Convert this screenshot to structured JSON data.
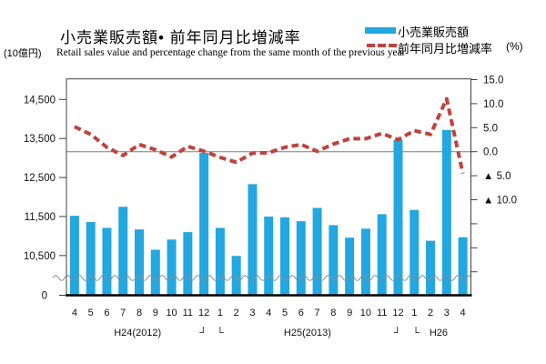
{
  "header": {
    "title": "小売業販売額• 前年同月比増減率",
    "subtitle": "Retail sales value and percentage change from the same month of the previous year",
    "left_unit": "(10億円)",
    "right_unit": "(%)"
  },
  "legend": {
    "bar_label": "小売業販売額",
    "line_label": "前年同月比増減率"
  },
  "colors": {
    "bar": "#22A7E0",
    "line": "#C0423C",
    "zero_line": "#7F7F7F",
    "frame": "#404040",
    "axis": "#000000",
    "wave": "#8C8C8C",
    "text": "#111111"
  },
  "chart_data": {
    "type": "bar+line",
    "title": "小売業販売額• 前年同月比増減率",
    "subtitle": "Retail sales value and percentage change from the same month of the previous year",
    "x_months": [
      "4",
      "5",
      "6",
      "7",
      "8",
      "9",
      "10",
      "11",
      "12",
      "1",
      "2",
      "3",
      "4",
      "5",
      "6",
      "7",
      "8",
      "9",
      "10",
      "11",
      "12",
      "1",
      "2",
      "3",
      "4"
    ],
    "era_row": [
      {
        "text": "H24(2012)",
        "index": 3.9
      },
      {
        "text": "┘",
        "index": 7.95
      },
      {
        "text": "└",
        "index": 9.0
      },
      {
        "text": "H25(2013)",
        "index": 14.4
      },
      {
        "text": "┘",
        "index": 19.95
      },
      {
        "text": "└",
        "index": 21.1
      },
      {
        "text": "H26",
        "index": 22.5
      }
    ],
    "bar_series": {
      "name": "小売業販売額",
      "unit": "10億円",
      "values": [
        11520,
        11360,
        11210,
        11750,
        11170,
        10650,
        10910,
        11100,
        13130,
        11210,
        10490,
        12330,
        11500,
        11480,
        11380,
        11720,
        11280,
        10960,
        11190,
        11560,
        13460,
        11670,
        10880,
        13720,
        10970
      ]
    },
    "line_series": {
      "name": "前年同月比増減率",
      "unit": "%",
      "values": [
        5.2,
        3.6,
        0.9,
        -0.8,
        1.5,
        0.4,
        -1.1,
        1.1,
        0.1,
        -1.2,
        -2.2,
        -0.3,
        -0.2,
        0.9,
        1.5,
        0.1,
        1.6,
        2.7,
        2.7,
        3.8,
        2.5,
        4.4,
        3.6,
        11.0,
        -4.5
      ],
      "style": "dashed"
    },
    "left_axis": {
      "unit": "(10億円)",
      "tick_values": [
        14500,
        13500,
        12500,
        11500,
        10500
      ],
      "tick_labels": [
        "14,500",
        "13,500",
        "12,500",
        "11,500",
        "10,500"
      ],
      "zero_label": "0",
      "axis_break": true
    },
    "right_axis": {
      "unit": "(%)",
      "tick_values": [
        15,
        10,
        5,
        0,
        -5,
        -10
      ],
      "tick_labels": [
        "15.0",
        "10.0",
        "5.0",
        "0.0",
        "▲ 5.0",
        "▲ 10.0"
      ],
      "unlabeled_tick_values": [
        -15,
        -20,
        -25
      ]
    },
    "legend_position": "top-right",
    "grid": "zero-line-only"
  }
}
